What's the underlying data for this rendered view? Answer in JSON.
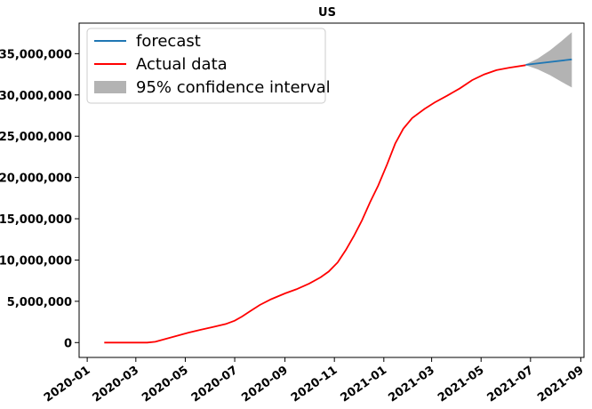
{
  "chart_data": {
    "type": "line",
    "title": "US",
    "xlabel": "",
    "ylabel": "",
    "x_axis_type": "date",
    "xlim": [
      "2019-12-22",
      "2021-09-05"
    ],
    "ylim": [
      -1800000,
      38700000
    ],
    "grid": false,
    "legend_position": "top-left",
    "x_ticks": [
      "2020-01-01",
      "2020-03-01",
      "2020-05-01",
      "2020-07-01",
      "2020-09-01",
      "2020-11-01",
      "2021-01-01",
      "2021-03-01",
      "2021-05-01",
      "2021-07-01",
      "2021-09-01"
    ],
    "x_tick_labels": [
      "2020-01",
      "2020-03",
      "2020-05",
      "2020-07",
      "2020-09",
      "2020-11",
      "2021-01",
      "2021-03",
      "2021-05",
      "2021-07",
      "2021-09"
    ],
    "y_ticks": [
      0,
      5000000,
      10000000,
      15000000,
      20000000,
      25000000,
      30000000,
      35000000
    ],
    "y_tick_labels": [
      "0",
      "5,000,000",
      "10,000,000",
      "15,000,000",
      "20,000,000",
      "25,000,000",
      "30,000,000",
      "35,000,000"
    ],
    "series": [
      {
        "name": "Actual data",
        "color": "#ff0000",
        "points": [
          [
            "2020-01-22",
            0
          ],
          [
            "2020-02-15",
            20
          ],
          [
            "2020-03-15",
            3500
          ],
          [
            "2020-03-25",
            100000
          ],
          [
            "2020-04-05",
            400000
          ],
          [
            "2020-04-20",
            800000
          ],
          [
            "2020-05-05",
            1200000
          ],
          [
            "2020-05-20",
            1550000
          ],
          [
            "2020-06-05",
            1900000
          ],
          [
            "2020-06-20",
            2250000
          ],
          [
            "2020-07-01",
            2650000
          ],
          [
            "2020-07-10",
            3150000
          ],
          [
            "2020-07-20",
            3800000
          ],
          [
            "2020-08-01",
            4550000
          ],
          [
            "2020-08-15",
            5250000
          ],
          [
            "2020-09-01",
            5950000
          ],
          [
            "2020-09-15",
            6450000
          ],
          [
            "2020-10-01",
            7150000
          ],
          [
            "2020-10-15",
            7900000
          ],
          [
            "2020-10-25",
            8600000
          ],
          [
            "2020-11-05",
            9700000
          ],
          [
            "2020-11-15",
            11200000
          ],
          [
            "2020-11-25",
            12900000
          ],
          [
            "2020-12-05",
            14800000
          ],
          [
            "2020-12-15",
            17000000
          ],
          [
            "2020-12-25",
            19000000
          ],
          [
            "2021-01-05",
            21600000
          ],
          [
            "2021-01-15",
            24100000
          ],
          [
            "2021-01-25",
            25900000
          ],
          [
            "2021-02-05",
            27200000
          ],
          [
            "2021-02-20",
            28300000
          ],
          [
            "2021-03-05",
            29100000
          ],
          [
            "2021-03-20",
            29900000
          ],
          [
            "2021-04-05",
            30800000
          ],
          [
            "2021-04-20",
            31800000
          ],
          [
            "2021-05-05",
            32500000
          ],
          [
            "2021-05-20",
            33000000
          ],
          [
            "2021-06-05",
            33300000
          ],
          [
            "2021-06-25",
            33600000
          ]
        ]
      },
      {
        "name": "forecast",
        "color": "#1f77b4",
        "points": [
          [
            "2021-06-25",
            33650000
          ],
          [
            "2021-08-21",
            34300000
          ]
        ]
      }
    ],
    "confidence_interval": {
      "name": "95% confidence interval",
      "color": "#b3b3b3",
      "x": [
        "2021-06-25",
        "2021-07-10",
        "2021-07-25",
        "2021-08-08",
        "2021-08-21"
      ],
      "lower": [
        33600000,
        33100000,
        32400000,
        31600000,
        30900000
      ],
      "upper": [
        33700000,
        34400000,
        35400000,
        36500000,
        37600000
      ]
    },
    "legend": [
      "forecast",
      "Actual data",
      "95% confidence interval"
    ]
  }
}
